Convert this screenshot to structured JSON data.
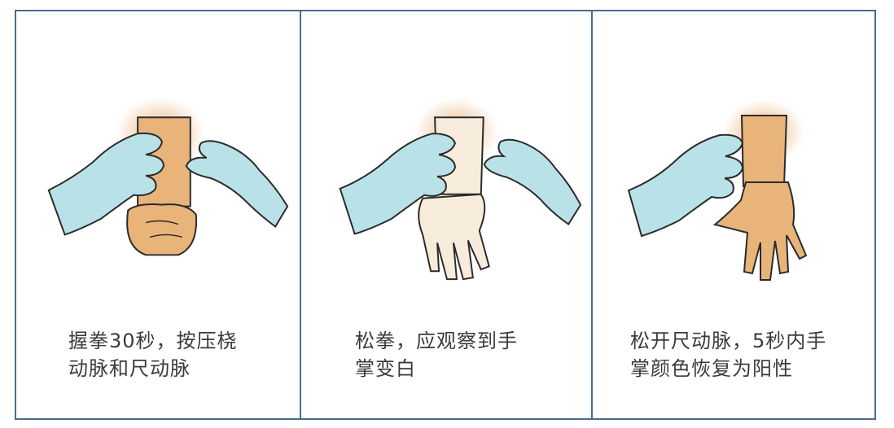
{
  "panels": [
    {
      "caption_line1": "握拳30秒，按压桡",
      "caption_line2": "动脉和尺动脉",
      "illustration": "clenched-fist-wrist-compressed"
    },
    {
      "caption_line1": "松拳，应观察到手",
      "caption_line2": "掌变白",
      "illustration": "open-palm-blanched"
    },
    {
      "caption_line1": "松开尺动脉，5秒内手",
      "caption_line2": "掌颜色恢复为阳性",
      "illustration": "open-palm-color-restored"
    }
  ],
  "colors": {
    "border": "#4a6b8c",
    "glove": "#b9e2e8",
    "skin": "#e8b47a",
    "pale_skin": "#f7ecdc",
    "caption_text": "#3b3b3b"
  }
}
